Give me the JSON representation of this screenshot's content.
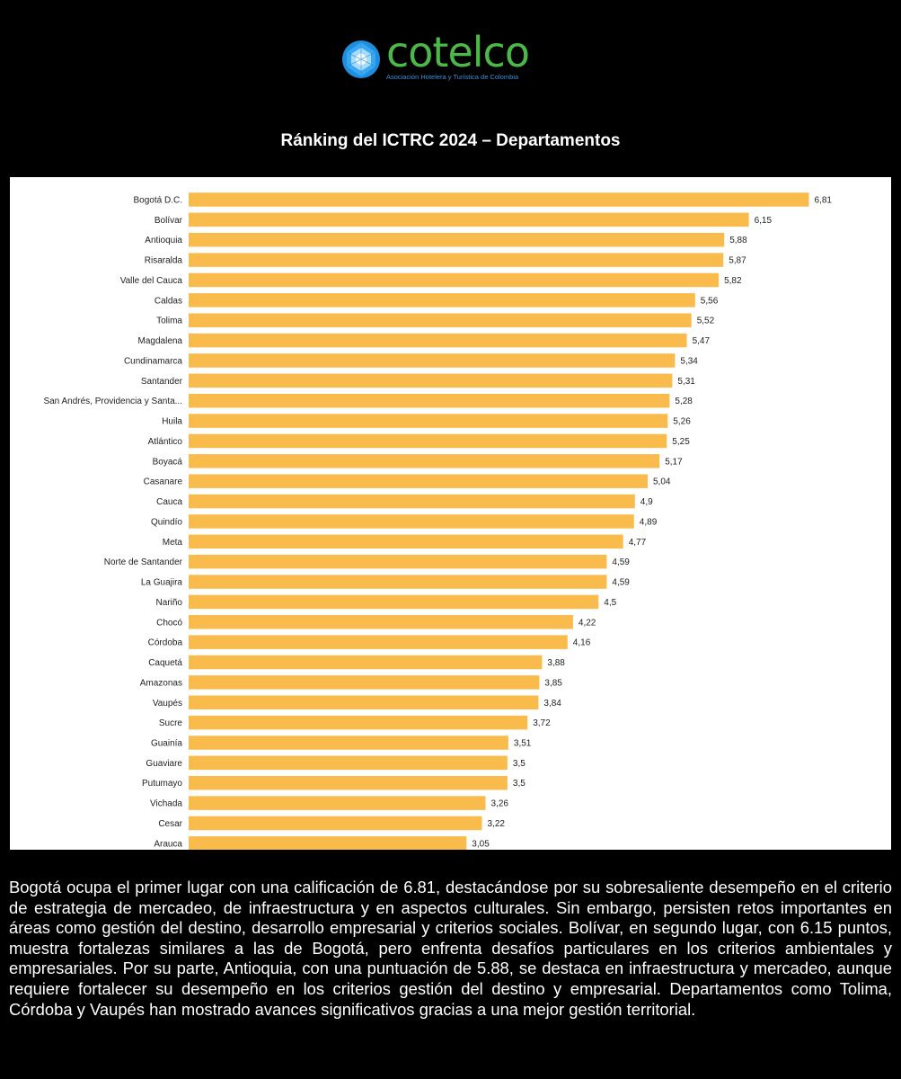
{
  "brand": {
    "name": "cotelco",
    "tagline": "Asociación Hotelera y Turística de Colombia",
    "colors": {
      "logo_green": "#4cb848",
      "logo_blue": "#1e8fe0",
      "bar": "#f9bb4b"
    }
  },
  "chart_data": {
    "type": "bar",
    "orientation": "horizontal",
    "title": "Ránking del ICTRC 2024 – Departamentos",
    "xlabel": "",
    "ylabel": "",
    "xlim": [
      0,
      6.81
    ],
    "grid": false,
    "categories": [
      "Bogotá D.C.",
      "Bolívar",
      "Antioquia",
      "Risaralda",
      "Valle del Cauca",
      "Caldas",
      "Tolima",
      "Magdalena",
      "Cundinamarca",
      "Santander",
      "San Andrés, Providencia y Santa...",
      "Huila",
      "Atlántico",
      "Boyacá",
      "Casanare",
      "Cauca",
      "Quindío",
      "Meta",
      "Norte de Santander",
      "La Guajira",
      "Nariño",
      "Chocó",
      "Córdoba",
      "Caquetá",
      "Amazonas",
      "Vaupés",
      "Sucre",
      "Guainía",
      "Guaviare",
      "Putumayo",
      "Vichada",
      "Cesar",
      "Arauca"
    ],
    "values": [
      6.81,
      6.15,
      5.88,
      5.87,
      5.82,
      5.56,
      5.52,
      5.47,
      5.34,
      5.31,
      5.28,
      5.26,
      5.25,
      5.17,
      5.04,
      4.9,
      4.89,
      4.77,
      4.59,
      4.59,
      4.5,
      4.22,
      4.16,
      3.88,
      3.85,
      3.84,
      3.72,
      3.51,
      3.5,
      3.5,
      3.26,
      3.22,
      3.05
    ],
    "value_labels": [
      "6,81",
      "6,15",
      "5,88",
      "5,87",
      "5,82",
      "5,56",
      "5,52",
      "5,47",
      "5,34",
      "5,31",
      "5,28",
      "5,26",
      "5,25",
      "5,17",
      "5,04",
      "4,9",
      "4,89",
      "4,77",
      "4,59",
      "4,59",
      "4,5",
      "4,22",
      "4,16",
      "3,88",
      "3,85",
      "3,84",
      "3,72",
      "3,51",
      "3,5",
      "3,5",
      "3,26",
      "3,22",
      "3,05"
    ]
  },
  "description": "Bogotá ocupa el primer lugar con una calificación de 6.81, destacándose por su sobresaliente desempeño en el criterio de estrategia de mercadeo, de infraestructura y en aspectos culturales. Sin embargo, persisten retos importantes en áreas como gestión del destino, desarrollo empresarial y criterios sociales. Bolívar, en segundo lugar, con 6.15 puntos, muestra fortalezas similares a las de Bogotá, pero enfrenta desafíos particulares en los criterios ambientales y empresariales. Por su parte, Antioquia, con una puntuación de 5.88, se destaca en infraestructura y mercadeo, aunque requiere fortalecer su desempeño en los criterios gestión del destino y empresarial. Departamentos como Tolima, Córdoba y Vaupés han mostrado avances significativos gracias a una mejor gestión territorial."
}
